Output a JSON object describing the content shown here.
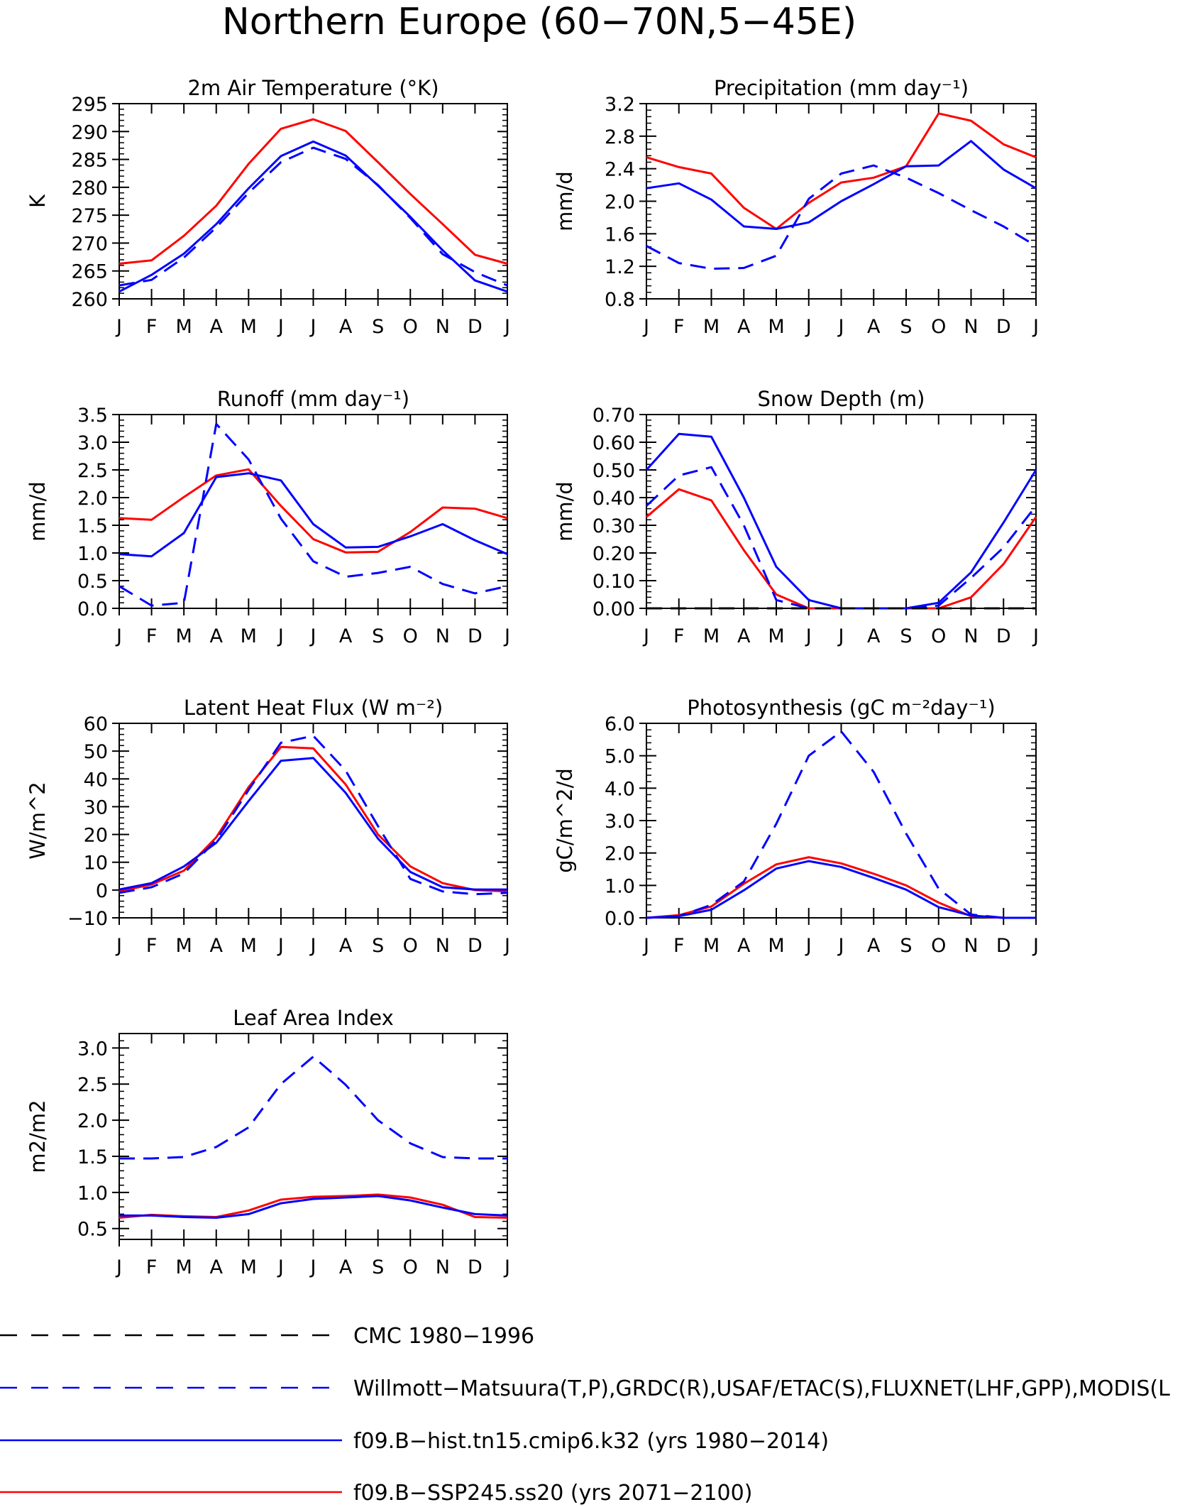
{
  "page": {
    "title": "Northern Europe (60−70N,5−45E)"
  },
  "colors": {
    "model_hist": "#0000ff",
    "model_ssp": "#ff0000",
    "obs": "#0000ff",
    "cmc": "#000000",
    "axis": "#000000"
  },
  "months": [
    "J",
    "F",
    "M",
    "A",
    "M",
    "J",
    "J",
    "A",
    "S",
    "O",
    "N",
    "D",
    "J"
  ],
  "chart_data": [
    {
      "type": "line",
      "title": "2m Air Temperature (°K)",
      "ylabel": "K",
      "ylim": [
        260,
        295
      ],
      "yticks": [
        "260",
        "265",
        "270",
        "275",
        "280",
        "285",
        "290",
        "295"
      ],
      "yticks_values": [
        260,
        265,
        270,
        275,
        280,
        285,
        290,
        295
      ],
      "series": [
        {
          "style": "solid-red",
          "values": [
            266.3,
            266.9,
            271.3,
            276.7,
            284.2,
            290.5,
            292.2,
            290.1,
            284.5,
            278.8,
            273.4,
            267.9,
            266.3
          ]
        },
        {
          "style": "solid-blue",
          "values": [
            261.3,
            264.3,
            268.1,
            273.4,
            279.8,
            285.6,
            288.2,
            285.7,
            280.3,
            274.7,
            268.7,
            263.3,
            261.3
          ]
        },
        {
          "style": "dashed-blue",
          "values": [
            262.4,
            263.4,
            267.4,
            272.8,
            279.0,
            284.5,
            287.1,
            285.1,
            280.4,
            274.5,
            268.0,
            264.8,
            262.4
          ]
        }
      ]
    },
    {
      "type": "line",
      "title": "Precipitation (mm day⁻¹)",
      "ylabel": "mm/d",
      "ylim": [
        0.8,
        3.2
      ],
      "yticks": [
        "0.8",
        "1.2",
        "1.6",
        "2.0",
        "2.4",
        "2.8",
        "3.2"
      ],
      "yticks_values": [
        0.8,
        1.2,
        1.6,
        2.0,
        2.4,
        2.8,
        3.2
      ],
      "series": [
        {
          "style": "solid-red",
          "values": [
            2.54,
            2.42,
            2.34,
            1.92,
            1.66,
            1.98,
            2.23,
            2.29,
            2.43,
            3.08,
            2.99,
            2.7,
            2.54
          ]
        },
        {
          "style": "solid-blue",
          "values": [
            2.16,
            2.22,
            2.02,
            1.69,
            1.66,
            1.74,
            2.0,
            2.21,
            2.43,
            2.44,
            2.74,
            2.39,
            2.16
          ]
        },
        {
          "style": "dashed-blue",
          "values": [
            1.45,
            1.24,
            1.17,
            1.18,
            1.33,
            2.03,
            2.34,
            2.44,
            2.29,
            2.1,
            1.89,
            1.69,
            1.45
          ]
        }
      ]
    },
    {
      "type": "line",
      "title": "Runoff (mm day⁻¹)",
      "ylabel": "mm/d",
      "ylim": [
        0.0,
        3.5
      ],
      "yticks": [
        "0.0",
        "0.5",
        "1.0",
        "1.5",
        "2.0",
        "2.5",
        "3.0",
        "3.5"
      ],
      "yticks_values": [
        0,
        0.5,
        1.0,
        1.5,
        2.0,
        2.5,
        3.0,
        3.5
      ],
      "series": [
        {
          "style": "solid-red",
          "values": [
            1.63,
            1.6,
            2.01,
            2.4,
            2.51,
            1.85,
            1.25,
            1.01,
            1.02,
            1.38,
            1.82,
            1.8,
            1.63
          ]
        },
        {
          "style": "solid-blue",
          "values": [
            0.98,
            0.94,
            1.36,
            2.37,
            2.44,
            2.31,
            1.52,
            1.1,
            1.11,
            1.3,
            1.52,
            1.23,
            0.98
          ]
        },
        {
          "style": "dashed-blue",
          "values": [
            0.4,
            0.05,
            0.1,
            3.33,
            2.69,
            1.62,
            0.85,
            0.57,
            0.64,
            0.75,
            0.44,
            0.27,
            0.4
          ]
        }
      ]
    },
    {
      "type": "line",
      "title": "Snow Depth (m)",
      "ylabel": "mm/d",
      "ylim": [
        0.0,
        0.7
      ],
      "yticks": [
        "0.00",
        "0.10",
        "0.20",
        "0.30",
        "0.40",
        "0.50",
        "0.60",
        "0.70"
      ],
      "yticks_values": [
        0,
        0.1,
        0.2,
        0.3,
        0.4,
        0.5,
        0.6,
        0.7
      ],
      "series": [
        {
          "style": "solid-red",
          "values": [
            0.33,
            0.43,
            0.39,
            0.21,
            0.05,
            0.0,
            0.0,
            0.0,
            0.0,
            0.0,
            0.04,
            0.16,
            0.33
          ]
        },
        {
          "style": "solid-blue",
          "values": [
            0.5,
            0.63,
            0.62,
            0.4,
            0.15,
            0.03,
            0.0,
            0.0,
            0.0,
            0.02,
            0.13,
            0.31,
            0.5
          ]
        },
        {
          "style": "dashed-blue",
          "values": [
            0.37,
            0.48,
            0.51,
            0.3,
            0.03,
            0.0,
            0.0,
            0.0,
            0.0,
            0.01,
            0.11,
            0.22,
            0.37
          ]
        },
        {
          "style": "dashed-black",
          "values": [
            0.0,
            0.0,
            0.0,
            0.0,
            0.0,
            0.0,
            0.0,
            0.0,
            0.0,
            0.0,
            0.0,
            0.0,
            0.0
          ]
        }
      ]
    },
    {
      "type": "line",
      "title": "Latent Heat Flux (W m⁻²)",
      "ylabel": "W/m^2",
      "ylim": [
        -10,
        60
      ],
      "yticks": [
        "−10",
        "0",
        "10",
        "20",
        "30",
        "40",
        "50",
        "60"
      ],
      "yticks_values": [
        -10,
        0,
        10,
        20,
        30,
        40,
        50,
        60
      ],
      "series": [
        {
          "style": "solid-red",
          "values": [
            -0.5,
            2.0,
            7.0,
            19.0,
            37.0,
            51.5,
            51.0,
            38.0,
            20.0,
            8.5,
            2.5,
            0.0,
            -0.5
          ]
        },
        {
          "style": "solid-blue",
          "values": [
            0.2,
            2.5,
            8.5,
            17.0,
            32.0,
            46.5,
            47.5,
            35.0,
            18.5,
            6.5,
            1.0,
            0.2,
            0.2
          ]
        },
        {
          "style": "dashed-blue",
          "values": [
            -1.0,
            1.0,
            6.0,
            18.0,
            36.0,
            53.0,
            55.5,
            43.0,
            23.0,
            4.0,
            -0.5,
            -1.5,
            -1.0
          ]
        }
      ]
    },
    {
      "type": "line",
      "title": "Photosynthesis (gC m⁻²day⁻¹)",
      "ylabel": "gC/m^2/d",
      "ylim": [
        0.0,
        6.0
      ],
      "yticks": [
        "0.0",
        "1.0",
        "2.0",
        "3.0",
        "4.0",
        "5.0",
        "6.0"
      ],
      "yticks_values": [
        0,
        1,
        2,
        3,
        4,
        5,
        6
      ],
      "series": [
        {
          "style": "solid-red",
          "values": [
            0.0,
            0.08,
            0.35,
            1.05,
            1.65,
            1.87,
            1.68,
            1.36,
            1.0,
            0.47,
            0.05,
            0.0,
            0.0
          ]
        },
        {
          "style": "solid-blue",
          "values": [
            0.0,
            0.05,
            0.25,
            0.85,
            1.52,
            1.75,
            1.57,
            1.23,
            0.87,
            0.33,
            0.07,
            0.0,
            0.0
          ]
        },
        {
          "style": "dashed-blue",
          "values": [
            0.0,
            0.05,
            0.4,
            1.12,
            2.9,
            5.0,
            5.75,
            4.5,
            2.6,
            0.9,
            0.1,
            0.0,
            0.0
          ]
        }
      ]
    },
    {
      "type": "line",
      "title": "Leaf Area Index",
      "ylabel": "m2/m2",
      "ylim": [
        0.35,
        3.2
      ],
      "yticks": [
        "0.5",
        "1.0",
        "1.5",
        "2.0",
        "2.5",
        "3.0"
      ],
      "yticks_values": [
        0.5,
        1.0,
        1.5,
        2.0,
        2.5,
        3.0
      ],
      "series": [
        {
          "style": "solid-red",
          "values": [
            0.65,
            0.69,
            0.67,
            0.66,
            0.75,
            0.9,
            0.94,
            0.95,
            0.97,
            0.93,
            0.83,
            0.66,
            0.65
          ]
        },
        {
          "style": "solid-blue",
          "values": [
            0.68,
            0.68,
            0.66,
            0.65,
            0.7,
            0.85,
            0.91,
            0.93,
            0.95,
            0.89,
            0.79,
            0.7,
            0.68
          ]
        },
        {
          "style": "dashed-blue",
          "values": [
            1.47,
            1.47,
            1.49,
            1.63,
            1.9,
            2.5,
            2.88,
            2.49,
            2.0,
            1.68,
            1.49,
            1.47,
            1.47
          ]
        }
      ]
    }
  ],
  "legend": [
    {
      "style": "dashed-black",
      "label": "CMC 1980−1996"
    },
    {
      "style": "dashed-blue",
      "label": "Willmott−Matsuura(T,P),GRDC(R),USAF/ETAC(S),FLUXNET(LHF,GPP),MODIS(L"
    },
    {
      "style": "solid-blue",
      "label": "f09.B−hist.tn15.cmip6.k32 (yrs 1980−2014)"
    },
    {
      "style": "solid-red",
      "label": "f09.B−SSP245.ss20 (yrs 2071−2100)"
    }
  ]
}
